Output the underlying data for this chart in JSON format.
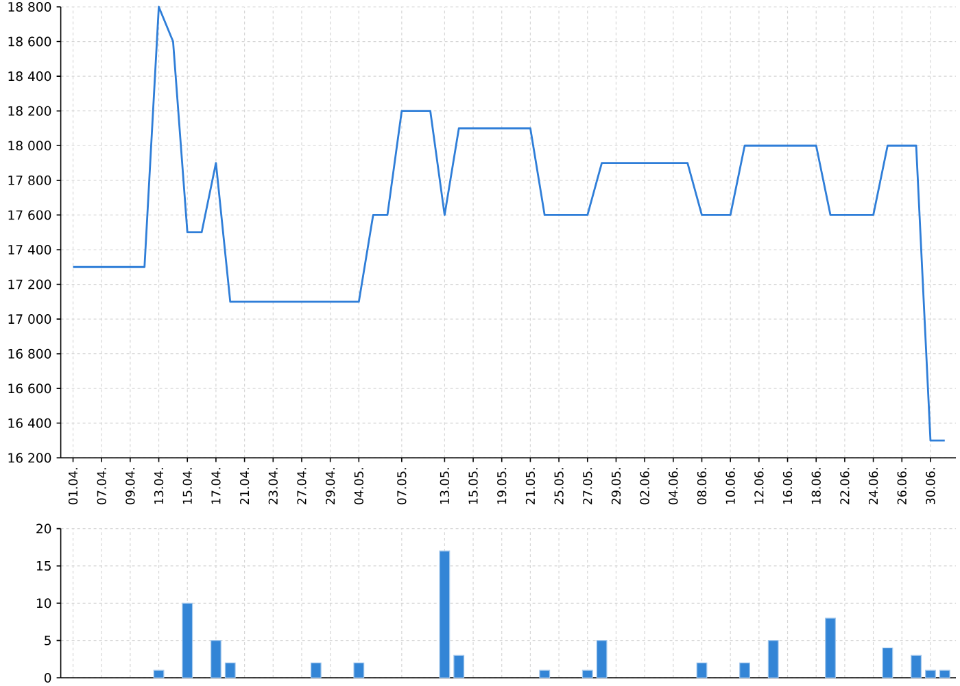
{
  "chart_data": [
    {
      "type": "line",
      "categories": [
        "01.04.",
        null,
        "07.04.",
        null,
        "09.04.",
        null,
        "13.04.",
        null,
        "15.04.",
        null,
        "17.04.",
        null,
        "21.04.",
        null,
        "23.04.",
        null,
        "27.04.",
        null,
        "29.04.",
        null,
        "04.05.",
        null,
        null,
        "07.05.",
        null,
        null,
        "13.05.",
        null,
        "15.05.",
        null,
        "19.05.",
        null,
        "21.05.",
        null,
        "25.05.",
        null,
        "27.05.",
        null,
        "29.05.",
        null,
        "02.06.",
        null,
        "04.06.",
        null,
        "08.06.",
        null,
        "10.06.",
        null,
        "12.06.",
        null,
        "16.06.",
        null,
        "18.06.",
        null,
        "22.06.",
        null,
        "24.06.",
        null,
        "26.06.",
        null,
        "30.06.",
        null
      ],
      "values": [
        17300,
        17300,
        17300,
        17300,
        17300,
        17300,
        18800,
        18600,
        17500,
        17500,
        17900,
        17100,
        17100,
        17100,
        17100,
        17100,
        17100,
        17100,
        17100,
        17100,
        17100,
        17600,
        17600,
        18200,
        18200,
        18200,
        17600,
        18100,
        18100,
        18100,
        18100,
        18100,
        18100,
        17600,
        17600,
        17600,
        17600,
        17900,
        17900,
        17900,
        17900,
        17900,
        17900,
        17900,
        17600,
        17600,
        17600,
        18000,
        18000,
        18000,
        18000,
        18000,
        18000,
        17600,
        17600,
        17600,
        17600,
        18000,
        18000,
        18000,
        16300,
        16300
      ],
      "color": "#2f7ed8",
      "ylim": [
        16200,
        18800
      ],
      "yticks": [
        {
          "value": 16200,
          "label": "16 200"
        },
        {
          "value": 16400,
          "label": "16 400"
        },
        {
          "value": 16600,
          "label": "16 600"
        },
        {
          "value": 16800,
          "label": "16 800"
        },
        {
          "value": 17000,
          "label": "17 000"
        },
        {
          "value": 17200,
          "label": "17 200"
        },
        {
          "value": 17400,
          "label": "17 400"
        },
        {
          "value": 17600,
          "label": "17 600"
        },
        {
          "value": 17800,
          "label": "17 800"
        },
        {
          "value": 18000,
          "label": "18 000"
        },
        {
          "value": 18200,
          "label": "18 200"
        },
        {
          "value": 18400,
          "label": "18 400"
        },
        {
          "value": 18600,
          "label": "18 600"
        },
        {
          "value": 18800,
          "label": "18 800"
        }
      ],
      "grid": true
    },
    {
      "type": "bar",
      "categories": [
        "01.04.",
        null,
        "07.04.",
        null,
        "09.04.",
        null,
        "13.04.",
        null,
        "15.04.",
        null,
        "17.04.",
        null,
        "21.04.",
        null,
        "23.04.",
        null,
        "27.04.",
        null,
        "29.04.",
        null,
        "04.05.",
        null,
        null,
        "07.05.",
        null,
        null,
        "13.05.",
        null,
        "15.05.",
        null,
        "19.05.",
        null,
        "21.05.",
        null,
        "25.05.",
        null,
        "27.05.",
        null,
        "29.05.",
        null,
        "02.06.",
        null,
        "04.06.",
        null,
        "08.06.",
        null,
        "10.06.",
        null,
        "12.06.",
        null,
        "16.06.",
        null,
        "18.06.",
        null,
        "22.06.",
        null,
        "24.06.",
        null,
        "26.06.",
        null,
        "30.06.",
        null
      ],
      "values": [
        null,
        null,
        null,
        null,
        null,
        null,
        1,
        null,
        10,
        null,
        5,
        2,
        null,
        null,
        null,
        null,
        null,
        2,
        null,
        null,
        2,
        null,
        null,
        null,
        null,
        null,
        17,
        3,
        null,
        null,
        null,
        null,
        null,
        1,
        null,
        null,
        1,
        5,
        null,
        null,
        null,
        null,
        null,
        null,
        2,
        null,
        null,
        2,
        null,
        5,
        null,
        null,
        null,
        8,
        null,
        null,
        null,
        4,
        null,
        3,
        1,
        1
      ],
      "color": "#3385d6",
      "ylim": [
        0,
        20
      ],
      "yticks": [
        0,
        5,
        10,
        15,
        20
      ],
      "grid": true,
      "tick_labels": "y"
    }
  ]
}
